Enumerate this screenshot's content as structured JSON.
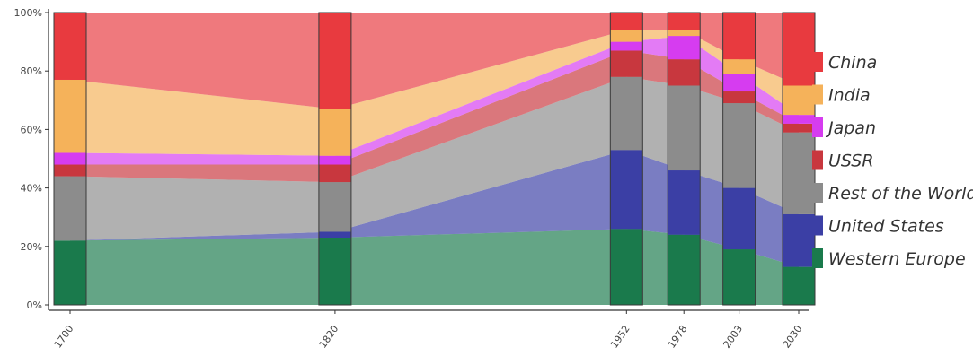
{
  "chart_data": {
    "type": "area",
    "subtype": "stacked-percent-with-highlight-bars",
    "x": [
      "1700",
      "1820",
      "1952",
      "1978",
      "2003",
      "2030"
    ],
    "ylim": [
      0,
      100
    ],
    "y_ticks": [
      "0%",
      "20%",
      "40%",
      "60%",
      "80%",
      "100%"
    ],
    "grid": false,
    "legend_position": "right",
    "series": [
      {
        "name": "Western Europe",
        "color": "#1a7a4c",
        "values": [
          22,
          23,
          26,
          24,
          19,
          13
        ]
      },
      {
        "name": "United States",
        "color": "#3b3fa5",
        "values": [
          0,
          2,
          27,
          22,
          21,
          18
        ]
      },
      {
        "name": "Rest of the World",
        "color": "#8c8c8c",
        "values": [
          22,
          17,
          25,
          29,
          29,
          28
        ]
      },
      {
        "name": "USSR",
        "color": "#c8373e",
        "values": [
          4,
          6,
          9,
          9,
          4,
          3
        ]
      },
      {
        "name": "Japan",
        "color": "#d63cf0",
        "values": [
          4,
          3,
          3,
          8,
          6,
          3
        ]
      },
      {
        "name": "India",
        "color": "#f5b25a",
        "values": [
          25,
          16,
          4,
          2,
          5,
          10
        ]
      },
      {
        "name": "China",
        "color": "#e83a3f",
        "values": [
          23,
          33,
          6,
          6,
          16,
          25
        ]
      }
    ]
  }
}
